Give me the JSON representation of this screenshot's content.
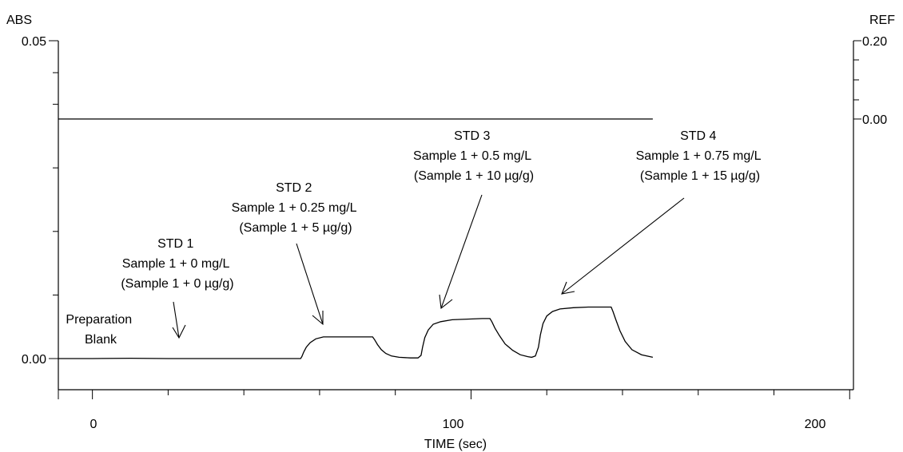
{
  "chart_data": {
    "type": "line",
    "title": "",
    "xlabel": "TIME (sec)",
    "left_axis": {
      "label": "ABS",
      "range": [
        -0.005,
        0.05
      ],
      "ticks": [
        "0.00",
        "0.05"
      ]
    },
    "right_axis": {
      "label": "REF",
      "ticks": [
        "0.20",
        "0.00"
      ]
    },
    "x_axis": {
      "range": [
        -9,
        201
      ],
      "ticks": [
        "0",
        "100",
        "200"
      ]
    },
    "grid": false,
    "series": [
      {
        "axis": "left",
        "x": [
          -9,
          0,
          10,
          20,
          30,
          40,
          50,
          55,
          55.3,
          55.8,
          56.5,
          57.5,
          59,
          61,
          64,
          68,
          72,
          74,
          74.5,
          75.3,
          76.3,
          77.5,
          79,
          81,
          84,
          86,
          86.8,
          87.2,
          87.8,
          88.7,
          90,
          92,
          95,
          99,
          103,
          105,
          105.5,
          106.3,
          107.5,
          109,
          111,
          113,
          115,
          116,
          117,
          117.8,
          118.3,
          119,
          120,
          121.5,
          123.5,
          127,
          131,
          135,
          137,
          137.5,
          138.2,
          139.3,
          140.7,
          142.5,
          145,
          148
        ],
        "y": [
          0,
          0,
          5e-05,
          0,
          0,
          0,
          0,
          0,
          0.0003,
          0.001,
          0.0018,
          0.0025,
          0.0031,
          0.0034,
          0.0034,
          0.0034,
          0.0034,
          0.0034,
          0.003,
          0.0022,
          0.0014,
          0.0008,
          0.0004,
          0.0002,
          0.0001,
          0.0001,
          0.0005,
          0.0018,
          0.0033,
          0.0045,
          0.0054,
          0.0058,
          0.0061,
          0.0062,
          0.0063,
          0.0063,
          0.0058,
          0.0048,
          0.0036,
          0.0023,
          0.0013,
          0.0006,
          0.0003,
          0.0002,
          0.0004,
          0.0018,
          0.0037,
          0.0055,
          0.0067,
          0.0074,
          0.0078,
          0.008,
          0.0081,
          0.0081,
          0.0081,
          0.0074,
          0.0062,
          0.0044,
          0.0027,
          0.0014,
          0.0006,
          0.0002
        ]
      },
      {
        "axis": "right",
        "x": [
          -9,
          148
        ],
        "y": [
          0,
          0
        ]
      }
    ],
    "annotations": [
      {
        "lines": [
          "Preparation",
          "Blank"
        ]
      },
      {
        "lines": [
          "STD 1",
          "Sample 1 + 0 mg/L",
          "(Sample 1 + 0 µg/g)"
        ]
      },
      {
        "lines": [
          "STD 2",
          "Sample 1 + 0.25 mg/L",
          "(Sample 1 + 5 µg/g)"
        ]
      },
      {
        "lines": [
          "STD 3",
          "Sample 1 + 0.5 mg/L",
          "(Sample 1 + 10 µg/g)"
        ]
      },
      {
        "lines": [
          "STD 4",
          "Sample 1 + 0.75 mg/L",
          "(Sample 1 + 15 µg/g)"
        ]
      }
    ]
  }
}
